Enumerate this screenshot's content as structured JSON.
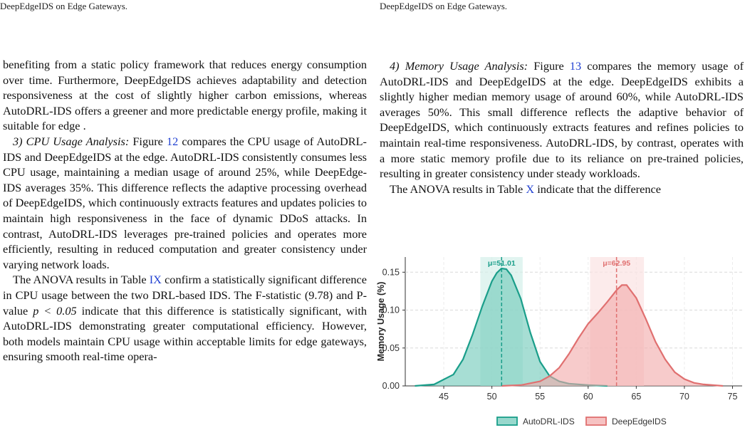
{
  "header": {
    "left": "DeepEdgeIDS on Edge Gateways.",
    "right": "DeepEdgeIDS on Edge Gateways."
  },
  "left": {
    "p1": "benefiting from a static policy framework that reduces energy consumption over time. Furthermore, DeepEdgeIDS achieves adaptability and detection responsiveness at the cost of slightly higher carbon emissions, whereas AutoDRL-IDS offers a greener and more predictable energy profile, making it suitable for edge .",
    "p2_heading": "3) CPU Usage Analysis:",
    "p2_a": " Figure ",
    "p2_ref": "12",
    "p2_b": " compares the CPU usage of AutoDRL-IDS and DeepEdgeIDS at the edge. AutoDRL-IDS consistently consumes less CPU usage, main­taining a median usage of around 25%, while DeepEdge-IDS averages 35%. This difference reflects the adaptive processing overhead of DeepEdgeIDS, which continuously extracts fea­tures and updates policies to maintain high responsiveness in the face of dynamic DDoS attacks. In contrast, AutoDRL-IDS leverages pre-trained policies and operates more efficiently, re­sulting in reduced computation and greater consistency under varying network loads.",
    "p3_a": "The ANOVA results in Table ",
    "p3_ref": "IX",
    "p3_b": " confirm a statistically significant difference in CPU usage between the two DRL-based IDS. The F-statistic (9.78) and P-value ",
    "p3_math": "p < 0.05",
    "p3_c": " indicate that this difference is statistically significant, with AutoDRL-IDS demonstrating greater computational efficiency. However, both models maintain CPU usage within acceptable limits for edge gateways, ensuring smooth real-time opera-"
  },
  "right": {
    "p1_heading": "4) Memory Usage Analysis:",
    "p1_a": " Figure ",
    "p1_ref": "13",
    "p1_b": " compares the mem­ory usage of AutoDRL-IDS and DeepEdgeIDS at the edge. DeepEdgeIDS exhibits a slightly higher median memory usage of around 60%, while AutoDRL-IDS averages 50%. This small difference reflects the adaptive behavior of DeepEdgeIDS, which continuously extracts features and refines policies to maintain real-time responsiveness. AutoDRL-IDS, by contrast, operates with a more static memory profile due to its reliance on pre-trained policies, resulting in greater consistency under steady workloads.",
    "p2_a": "The ANOVA results in Table ",
    "p2_ref": "X",
    "p2_b": " indicate that the difference"
  },
  "colors": {
    "autodrl_line": "#1a9e8a",
    "autodrl_fill": "#6cc8b8",
    "deepedge_line": "#e07070",
    "deepedge_fill": "#f2a8a8",
    "link": "#1f3fd1"
  },
  "chart_data": {
    "type": "area",
    "title": "",
    "xlabel": "",
    "ylabel": "Memory Usage (%)",
    "xlim": [
      41,
      76
    ],
    "ylim": [
      0,
      0.17
    ],
    "xticks": [
      45,
      50,
      55,
      60,
      65,
      70,
      75
    ],
    "yticks": [
      0.0,
      0.05,
      0.1,
      0.15
    ],
    "ytick_labels": [
      "0.00",
      "0.05",
      "0.10",
      "0.15"
    ],
    "grid": true,
    "legend_position": "bottom",
    "series": [
      {
        "name": "AutoDRL-IDS",
        "mean": 51.01,
        "mean_label": "μ=51.01",
        "band": [
          48.8,
          53.2
        ],
        "x": [
          42,
          44,
          46,
          47,
          48,
          49,
          50,
          50.5,
          51,
          51.5,
          52,
          53,
          54,
          55,
          56,
          57,
          58,
          60,
          62
        ],
        "y": [
          0.0,
          0.002,
          0.015,
          0.035,
          0.068,
          0.105,
          0.138,
          0.149,
          0.155,
          0.154,
          0.146,
          0.115,
          0.07,
          0.032,
          0.013,
          0.006,
          0.003,
          0.001,
          0.0
        ]
      },
      {
        "name": "DeepEdgeIDS",
        "mean": 62.95,
        "mean_label": "μ=62.95",
        "band": [
          60.2,
          65.8
        ],
        "x": [
          51,
          53,
          55,
          56,
          57,
          58,
          59,
          60,
          61,
          62,
          63,
          63.5,
          64,
          65,
          66,
          67,
          68,
          69,
          70,
          71,
          72,
          74
        ],
        "y": [
          0.0,
          0.001,
          0.006,
          0.013,
          0.024,
          0.042,
          0.063,
          0.082,
          0.096,
          0.111,
          0.127,
          0.133,
          0.133,
          0.116,
          0.088,
          0.058,
          0.035,
          0.018,
          0.009,
          0.004,
          0.002,
          0.0
        ]
      }
    ]
  }
}
